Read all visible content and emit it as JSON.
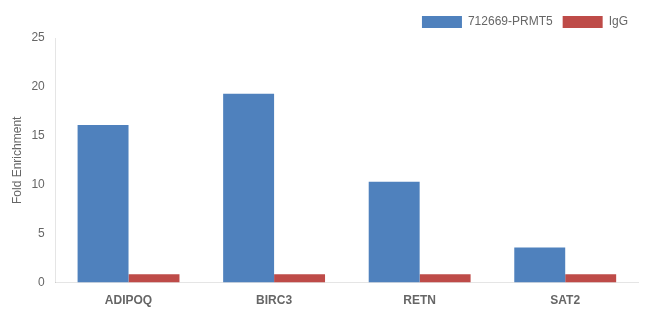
{
  "chart_data": {
    "type": "bar",
    "categories": [
      "ADIPOQ",
      "BIRC3",
      "RETN",
      "SAT2"
    ],
    "series": [
      {
        "name": "712669-PRMT5",
        "color": "#4F81BD",
        "values": [
          16.1,
          19.3,
          10.3,
          3.6
        ]
      },
      {
        "name": "IgG",
        "color": "#BE4B48",
        "values": [
          0.85,
          0.85,
          0.85,
          0.85
        ]
      }
    ],
    "ylabel": "Fold Enrichment",
    "ylim": [
      0,
      25
    ],
    "yticks": [
      0,
      5,
      10,
      15,
      20,
      25
    ],
    "grid": false,
    "legend": "upper right"
  }
}
